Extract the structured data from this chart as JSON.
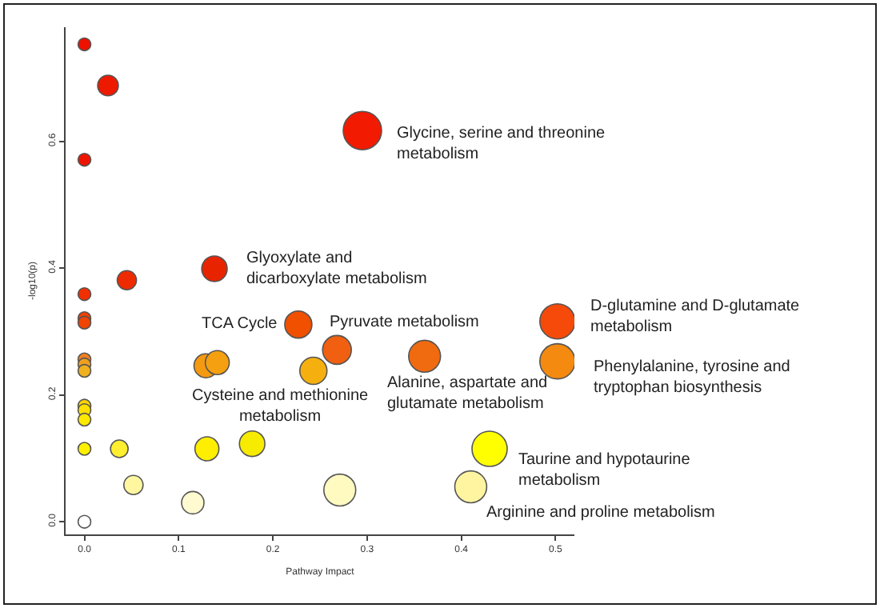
{
  "chart_data": {
    "type": "bubble",
    "xlabel": "Pathway Impact",
    "ylabel": "-log10(p)",
    "x": [
      0,
      0.025,
      0,
      0.295,
      0.138,
      0.045,
      0,
      0,
      0,
      0.227,
      0.268,
      0.361,
      0.502,
      0.502,
      0.129,
      0.141,
      0.243,
      0,
      0,
      0,
      0,
      0,
      0,
      0,
      0.037,
      0.13,
      0.178,
      0.43,
      0.052,
      0.115,
      0.271,
      0.41,
      0
    ],
    "values": [
      0.753,
      0.688,
      0.571,
      0.617,
      0.399,
      0.381,
      0.359,
      0.321,
      0.314,
      0.311,
      0.271,
      0.261,
      0.316,
      0.253,
      0.246,
      0.251,
      0.238,
      0.256,
      0.248,
      0.238,
      0.183,
      0.176,
      0.161,
      0.115,
      0.115,
      0.115,
      0.123,
      0.115,
      0.058,
      0.03,
      0.05,
      0.055,
      0
    ],
    "sizes": [
      0.11,
      0.29,
      0.11,
      1,
      0.44,
      0.25,
      0.11,
      0.11,
      0.11,
      0.5,
      0.56,
      0.69,
      0.84,
      0.84,
      0.39,
      0.39,
      0.5,
      0.11,
      0.11,
      0.11,
      0.11,
      0.11,
      0.11,
      0.11,
      0.21,
      0.39,
      0.44,
      0.84,
      0.25,
      0.34,
      0.69,
      0.69,
      0.11
    ],
    "colors": [
      "#ee1100",
      "#ee1a00",
      "#ee1500",
      "#f21a00",
      "#e82400",
      "#ee2a00",
      "#f03000",
      "#f04000",
      "#f04400",
      "#f05000",
      "#f06010",
      "#f06a10",
      "#f54a0a",
      "#f58a10",
      "#f59a10",
      "#f5a010",
      "#f5b010",
      "#f08020",
      "#f0a020",
      "#f0b020",
      "#ffd400",
      "#ffe000",
      "#ffe800",
      "#fff000",
      "#ffef30",
      "#ffee00",
      "#f7ec00",
      "#ffff00",
      "#fff7a0",
      "#fffad0",
      "#fffac0",
      "#fff5a0",
      "#ffffff"
    ],
    "xlim": [
      -0.02,
      0.52
    ],
    "ylim": [
      -0.02,
      0.78
    ],
    "xticks": [
      {
        "value": 0,
        "label": "0.0"
      },
      {
        "value": 0.1,
        "label": "0.1"
      },
      {
        "value": 0.2,
        "label": "0.2"
      },
      {
        "value": 0.3,
        "label": "0.3"
      },
      {
        "value": 0.4,
        "label": "0.4"
      },
      {
        "value": 0.5,
        "label": "0.5"
      }
    ],
    "yticks": [
      {
        "value": 0,
        "label": "0.0"
      },
      {
        "value": 0.2,
        "label": "0.2"
      },
      {
        "value": 0.4,
        "label": "0.4"
      },
      {
        "value": 0.6,
        "label": "0.6"
      }
    ],
    "annotations": [
      {
        "text": "Glycine, serine and threonine metabolism",
        "x": 0.295,
        "y": 0.617
      },
      {
        "text": "Glyoxylate and dicarboxylate metabolism",
        "x": 0.138,
        "y": 0.399
      },
      {
        "text": "TCA Cycle",
        "x": 0.227,
        "y": 0.311
      },
      {
        "text": "Pyruvate metabolism",
        "x": 0.268,
        "y": 0.271
      },
      {
        "text": "Cysteine and methionine metabolism",
        "x": 0.141,
        "y": 0.251
      },
      {
        "text": "Alanine, aspartate and glutamate metabolism",
        "x": 0.361,
        "y": 0.261
      },
      {
        "text": "D-glutamine and D-glutamate metabolism",
        "x": 0.502,
        "y": 0.316
      },
      {
        "text": "Phenylalanine, tyrosine and tryptophan biosynthesis",
        "x": 0.502,
        "y": 0.253
      },
      {
        "text": "Taurine and hypotaurine metabolism",
        "x": 0.43,
        "y": 0.115
      },
      {
        "text": "Arginine and proline metabolism",
        "x": 0.41,
        "y": 0.055
      }
    ]
  }
}
